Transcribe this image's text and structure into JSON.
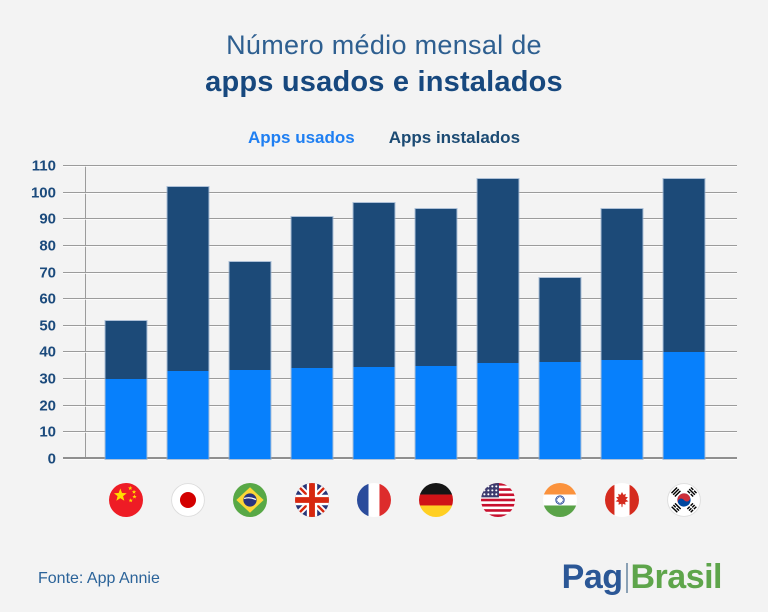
{
  "title": {
    "line1": "Número médio mensal de",
    "line2": "apps usados e instalados"
  },
  "legend": {
    "used_label": "Apps usados",
    "installed_label": "Apps instalados"
  },
  "colors": {
    "background": "#f3f3f3",
    "used": "#0780fc",
    "installed": "#1c4a78",
    "legend_used_text": "#1f7ff2",
    "legend_installed_text": "#1b4a73",
    "gridline": "#9b9b9b",
    "axis_label": "#1b4a7c",
    "logo_pag": "#2b5796",
    "logo_brasil": "#5ea54b"
  },
  "chart_data": {
    "type": "bar",
    "stacked": true,
    "title": "Número médio mensal de apps usados e instalados",
    "categories": [
      "China",
      "Japão",
      "Brasil",
      "Reino Unido",
      "França",
      "Alemanha",
      "Estados Unidos",
      "Índia",
      "Canadá",
      "Coreia do Sul"
    ],
    "category_icons": [
      "flag-china",
      "flag-japan",
      "flag-brazil",
      "flag-uk",
      "flag-france",
      "flag-germany",
      "flag-usa",
      "flag-india",
      "flag-canada",
      "flag-south-korea"
    ],
    "series": [
      {
        "name": "Apps usados",
        "color": "#0780fc",
        "values": [
          30,
          33,
          33.5,
          34,
          34.5,
          35,
          36,
          36.5,
          37,
          40
        ]
      },
      {
        "name": "Apps instalados",
        "color": "#1c4a78",
        "values": [
          52,
          102,
          74,
          91,
          96,
          94,
          105,
          68,
          94,
          105
        ]
      }
    ],
    "bar_style": "overlaid: 'Apps instalados' values are total bar heights, 'Apps usados' drawn over the lower portion",
    "ylim": [
      0,
      110
    ],
    "ytick_step": 10,
    "grid": true,
    "legend_position": "top-center",
    "xlabel": "",
    "ylabel": ""
  },
  "footer": {
    "source": "Fonte: App Annie",
    "logo_part1": "Pag",
    "logo_part2": "Brasil"
  }
}
